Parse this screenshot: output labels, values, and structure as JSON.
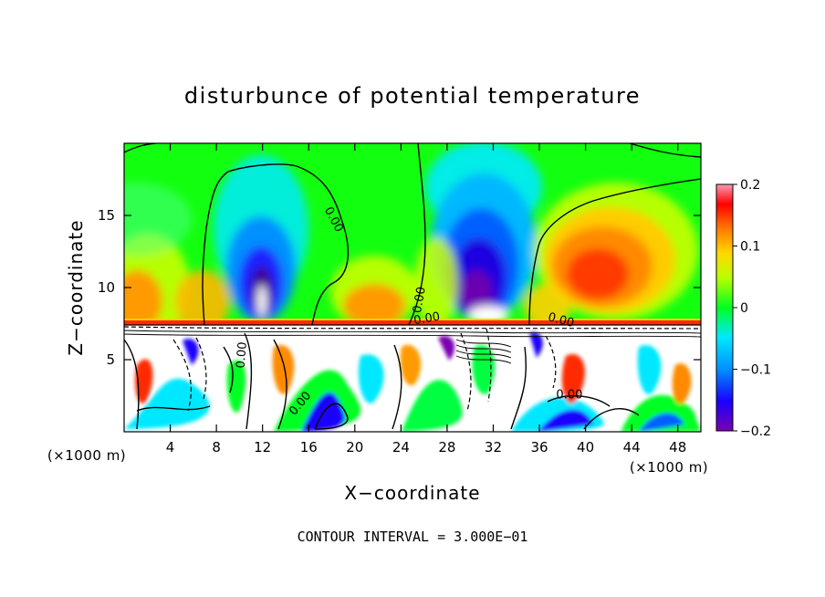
{
  "chart_data": {
    "type": "heatmap",
    "title": "disturbunce of potential temperature",
    "xlabel": "X−coordinate",
    "ylabel": "Z−coordinate",
    "x_unit": "(×1000 m)",
    "y_unit": "(×1000 m)",
    "xlim": [
      0,
      50
    ],
    "ylim": [
      0,
      20
    ],
    "x_ticks": [
      4,
      8,
      12,
      16,
      20,
      24,
      28,
      32,
      36,
      40,
      44,
      48
    ],
    "y_ticks": [
      5,
      10,
      15
    ],
    "colorbar": {
      "min": -0.2,
      "max": 0.2,
      "ticks": [
        -0.2,
        -0.1,
        0,
        0.1,
        0.2
      ],
      "tick_labels": [
        "−0.2",
        "−0.1",
        "0",
        "0.1",
        "0.2"
      ]
    },
    "contour_label": "0.00",
    "contour_interval_text": "CONTOUR INTERVAL = 3.000E−01",
    "features": [
      {
        "x": 12,
        "z": 10,
        "value": -0.19
      },
      {
        "x": 31,
        "z": 11,
        "value": -0.2
      },
      {
        "x": 42,
        "z": 11,
        "value": 0.15
      },
      {
        "x": 3,
        "z": 10,
        "value": 0.12
      },
      {
        "x": 21,
        "z": 9,
        "value": 0.1
      },
      {
        "x": 38,
        "z": 9,
        "value": 0.1
      },
      {
        "x": 25,
        "z": 16,
        "value": 0.02
      }
    ]
  }
}
